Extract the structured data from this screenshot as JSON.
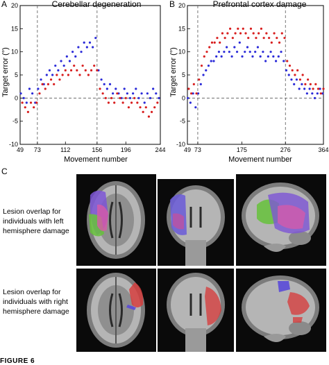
{
  "panels": {
    "a": {
      "letter": "A",
      "chart_data": {
        "type": "scatter",
        "title": "Cerebellar degeneration",
        "xlabel": "Movement number",
        "ylabel": "Target error (°)",
        "xlim": [
          49,
          244
        ],
        "ylim": [
          -10,
          20
        ],
        "xticks": [
          49,
          73,
          112,
          156,
          196,
          244
        ],
        "yticks": [
          -10,
          -5,
          0,
          5,
          10,
          15,
          20
        ],
        "vlines": [
          73,
          156
        ],
        "hline": 0,
        "grid": false,
        "series": [
          {
            "color": "#2a2ad8",
            "x": [
              50,
              54,
              58,
              62,
              66,
              70,
              74,
              78,
              82,
              86,
              90,
              94,
              98,
              102,
              106,
              110,
              114,
              118,
              122,
              126,
              130,
              134,
              138,
              142,
              146,
              150,
              154,
              158,
              162,
              166,
              170,
              174,
              178,
              182,
              186,
              190,
              194,
              198,
              202,
              206,
              210,
              214,
              218,
              222,
              226,
              230,
              234,
              238,
              242
            ],
            "y": [
              1,
              0,
              -1,
              2,
              1,
              -1,
              2,
              4,
              3,
              5,
              6,
              5,
              7,
              6,
              8,
              7,
              9,
              8,
              10,
              9,
              11,
              10,
              12,
              11,
              12,
              11,
              13,
              6,
              4,
              3,
              2,
              3,
              1,
              2,
              1,
              0,
              2,
              1,
              0,
              1,
              2,
              0,
              1,
              -1,
              1,
              0,
              2,
              1,
              0
            ]
          },
          {
            "color": "#d81e1e",
            "x": [
              52,
              56,
              60,
              64,
              68,
              72,
              76,
              80,
              84,
              88,
              92,
              96,
              100,
              104,
              108,
              112,
              116,
              120,
              124,
              128,
              132,
              136,
              140,
              144,
              148,
              152,
              156,
              160,
              164,
              168,
              172,
              176,
              180,
              184,
              188,
              192,
              196,
              200,
              204,
              208,
              212,
              216,
              220,
              224,
              228,
              232,
              236,
              240
            ],
            "y": [
              -1,
              -2,
              -3,
              -1,
              -2,
              -1,
              1,
              3,
              2,
              3,
              4,
              3,
              5,
              4,
              5,
              6,
              5,
              6,
              7,
              6,
              5,
              7,
              6,
              5,
              6,
              7,
              6,
              2,
              1,
              0,
              -1,
              0,
              -1,
              1,
              0,
              -1,
              0,
              -2,
              -1,
              0,
              -1,
              -2,
              -3,
              -2,
              -4,
              -3,
              -2,
              -1
            ]
          }
        ]
      }
    },
    "b": {
      "letter": "B",
      "chart_data": {
        "type": "scatter",
        "title": "Prefrontal cortex damage",
        "xlabel": "Movement number",
        "ylabel": "Target error (°)",
        "xlim": [
          49,
          364
        ],
        "ylim": [
          -10,
          20
        ],
        "xticks": [
          49,
          73,
          175,
          276,
          364
        ],
        "yticks": [
          -10,
          -5,
          0,
          5,
          10,
          15,
          20
        ],
        "vlines": [
          73,
          276
        ],
        "hline": 0,
        "grid": false,
        "series": [
          {
            "color": "#2a2ad8",
            "x": [
              50,
              56,
              62,
              68,
              74,
              80,
              86,
              92,
              98,
              104,
              110,
              116,
              122,
              128,
              134,
              140,
              146,
              152,
              158,
              164,
              170,
              176,
              182,
              188,
              194,
              200,
              206,
              212,
              218,
              224,
              230,
              236,
              242,
              248,
              254,
              260,
              266,
              272,
              278,
              284,
              290,
              296,
              302,
              308,
              314,
              320,
              326,
              332,
              338,
              344,
              350,
              356,
              362
            ],
            "y": [
              0,
              -1,
              1,
              -2,
              1,
              3,
              5,
              6,
              7,
              8,
              8,
              9,
              10,
              9,
              10,
              11,
              10,
              9,
              11,
              10,
              12,
              9,
              10,
              11,
              10,
              9,
              10,
              11,
              9,
              10,
              8,
              9,
              10,
              9,
              8,
              9,
              10,
              8,
              6,
              5,
              4,
              3,
              4,
              2,
              3,
              2,
              1,
              2,
              1,
              0,
              1,
              2,
              1
            ]
          },
          {
            "color": "#d81e1e",
            "x": [
              52,
              58,
              64,
              70,
              76,
              82,
              88,
              94,
              100,
              106,
              112,
              118,
              124,
              130,
              136,
              142,
              148,
              154,
              160,
              166,
              172,
              178,
              184,
              190,
              196,
              202,
              208,
              214,
              220,
              226,
              232,
              238,
              244,
              250,
              256,
              262,
              268,
              274,
              280,
              286,
              292,
              298,
              304,
              310,
              316,
              322,
              328,
              334,
              340,
              346,
              352,
              358,
              364
            ],
            "y": [
              2,
              1,
              3,
              1,
              4,
              7,
              9,
              10,
              11,
              12,
              12,
              13,
              12,
              14,
              13,
              14,
              15,
              13,
              14,
              15,
              14,
              15,
              14,
              13,
              15,
              14,
              13,
              14,
              15,
              13,
              14,
              13,
              12,
              14,
              13,
              12,
              14,
              13,
              8,
              7,
              6,
              5,
              6,
              4,
              5,
              3,
              4,
              3,
              2,
              3,
              2,
              1,
              2
            ]
          }
        ]
      }
    },
    "c": {
      "letter": "C",
      "left_caption": "Lesion overlap for individuals with left hemisphere damage",
      "right_caption": "Lesion overlap for individuals with right hemisphere damage"
    }
  },
  "footer": "FIGURE 6"
}
